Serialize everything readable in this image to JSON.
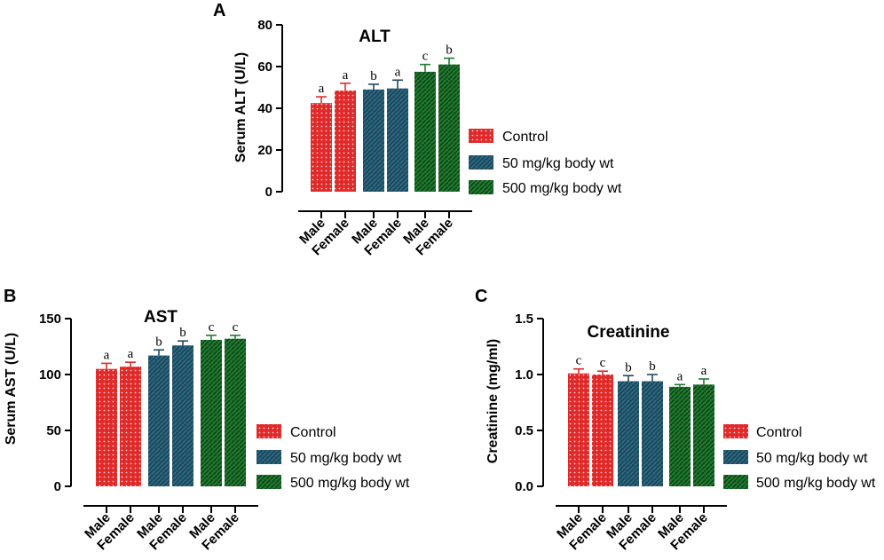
{
  "figure_letters": [
    "A",
    "B",
    "C"
  ],
  "legend_entries": [
    "Control",
    "50 mg/kg body wt",
    "500 mg/kg body wt"
  ],
  "group_colors": {
    "control": "#e02a2a",
    "low": "#1f4a5e",
    "high": "#1f7a2e"
  },
  "chart_data": [
    {
      "panel": "A",
      "type": "bar",
      "title": "ALT",
      "xlabel": "",
      "ylabel": "Serum ALT (U/L)",
      "ylim": [
        0,
        80
      ],
      "yticks": [
        0,
        20,
        40,
        60,
        80
      ],
      "categories": [
        "Male",
        "Female",
        "Male",
        "Female",
        "Male",
        "Female"
      ],
      "group_of_bar": [
        "control",
        "control",
        "low",
        "low",
        "high",
        "high"
      ],
      "values": [
        42.5,
        48.5,
        49,
        49.5,
        57.5,
        61
      ],
      "errors": [
        3,
        3.5,
        2.5,
        4,
        3.5,
        3
      ],
      "significance": [
        "a",
        "a",
        "b",
        "a",
        "c",
        "b"
      ]
    },
    {
      "panel": "B",
      "type": "bar",
      "title": "AST",
      "xlabel": "",
      "ylabel": "Serum AST (U/L)",
      "ylim": [
        0,
        150
      ],
      "yticks": [
        0,
        50,
        100,
        150
      ],
      "categories": [
        "Male",
        "Female",
        "Male",
        "Female",
        "Male",
        "Female"
      ],
      "group_of_bar": [
        "control",
        "control",
        "low",
        "low",
        "high",
        "high"
      ],
      "values": [
        105,
        107,
        117,
        126,
        131,
        132
      ],
      "errors": [
        5,
        4,
        5,
        4,
        4,
        3
      ],
      "significance": [
        "a",
        "a",
        "b",
        "b",
        "c",
        "c"
      ]
    },
    {
      "panel": "C",
      "type": "bar",
      "title": "Creatinine",
      "xlabel": "",
      "ylabel": "Creatinine (mg/ml)",
      "ylim": [
        0,
        1.5
      ],
      "yticks": [
        0.0,
        0.5,
        1.0,
        1.5
      ],
      "ytick_labels": [
        "0.0",
        "0.5",
        "1.0",
        "1.5"
      ],
      "categories": [
        "Male",
        "Female",
        "Male",
        "Female",
        "Male",
        "Female"
      ],
      "group_of_bar": [
        "control",
        "control",
        "low",
        "low",
        "high",
        "high"
      ],
      "values": [
        1.01,
        1.0,
        0.94,
        0.94,
        0.89,
        0.91
      ],
      "errors": [
        0.04,
        0.03,
        0.05,
        0.06,
        0.02,
        0.05
      ],
      "significance": [
        "c",
        "c",
        "b",
        "b",
        "a",
        "a"
      ]
    }
  ]
}
